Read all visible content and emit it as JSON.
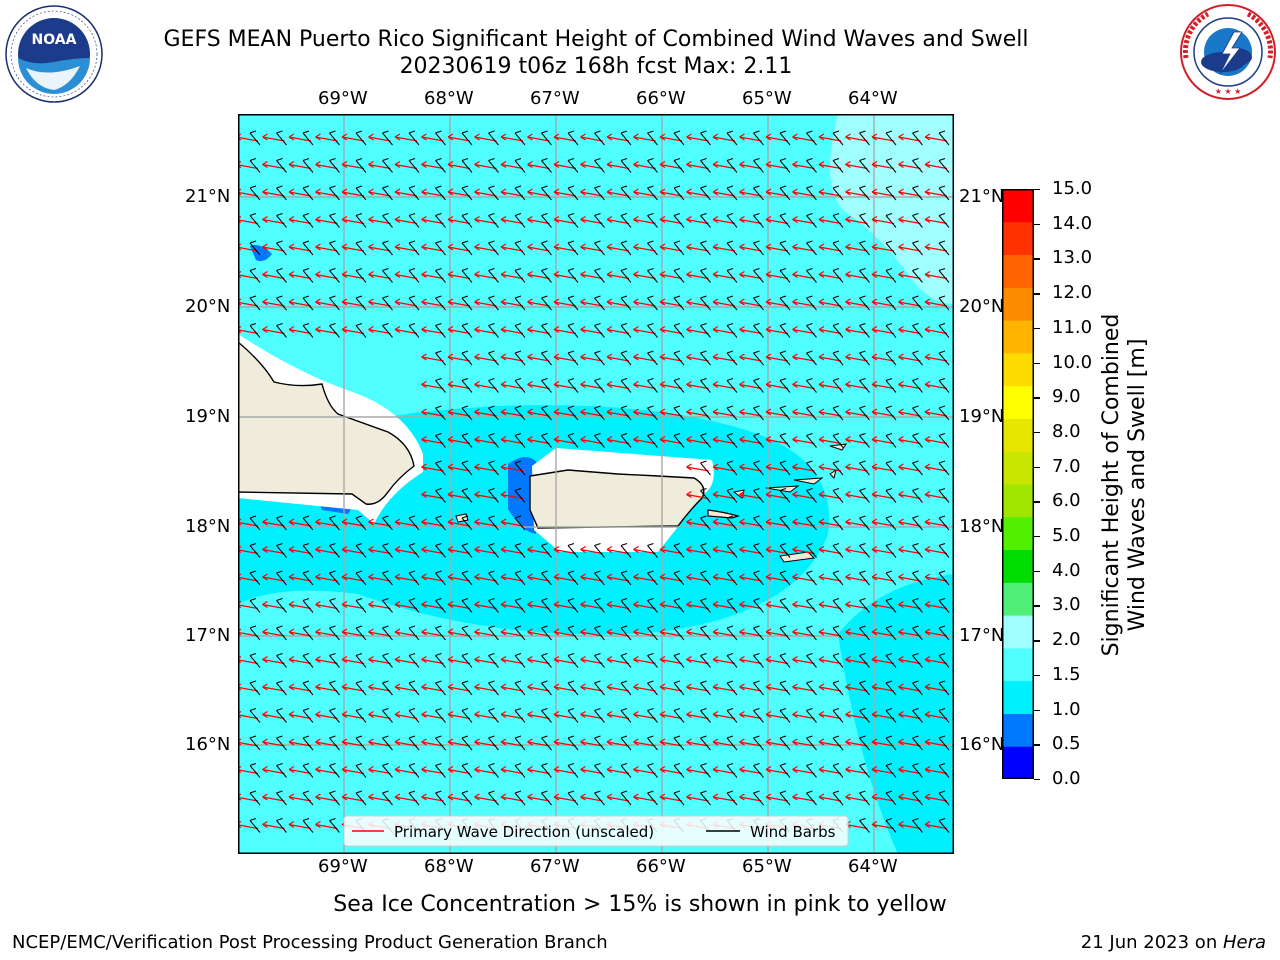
{
  "header": {
    "title_line1": "GEFS MEAN Puerto Rico Significant Height of Combined Wind Waves and Swell",
    "title_line2": "20230619 t06z 168h fcst   Max: 2.11"
  },
  "logos": {
    "left": {
      "icon": "noaa-logo-icon",
      "text": "NOAA",
      "ring_text": "NATIONAL OCEANIC AND ATMOSPHERIC ADMINISTRATION · U.S. DEPARTMENT OF COMMERCE"
    },
    "right": {
      "icon": "nws-logo-icon",
      "ring_text": "NATIONAL WEATHER SERVICE"
    }
  },
  "map": {
    "lon_labels": [
      "69°W",
      "68°W",
      "67°W",
      "66°W",
      "65°W",
      "64°W"
    ],
    "lat_labels": [
      "21°N",
      "20°N",
      "19°N",
      "18°N",
      "17°N",
      "16°N"
    ],
    "legend": {
      "wave_direction": "Primary Wave Direction (unscaled)",
      "wind_barbs": "Wind Barbs",
      "wave_color": "#ff0000",
      "barb_color": "#000000"
    },
    "field_colors": {
      "light": "#50ffff",
      "mid": "#00f0ff",
      "pale": "#a0ffff",
      "land": "#efecdc"
    }
  },
  "colorbar": {
    "title_line1": "Significant Height of Combined",
    "title_line2": "Wind Waves and Swell [m]",
    "labels": [
      "15.0",
      "14.0",
      "13.0",
      "12.0",
      "11.0",
      "10.0",
      "9.0",
      "8.0",
      "7.0",
      "6.0",
      "5.0",
      "4.0",
      "3.0",
      "2.0",
      "1.5",
      "1.0",
      "0.5",
      "0.0"
    ],
    "colors": [
      "#0000ff",
      "#0078ff",
      "#00f0ff",
      "#50ffff",
      "#a0ffff",
      "#50f078",
      "#00dc00",
      "#50f000",
      "#a0e600",
      "#c8e600",
      "#e6e600",
      "#ffff00",
      "#ffdc00",
      "#ffb400",
      "#ff8c00",
      "#ff6400",
      "#ff3200",
      "#ff0000"
    ]
  },
  "footer": {
    "note": "Sea Ice Concentration > 15% is shown in pink to yellow",
    "credit_left": "NCEP/EMC/Verification Post Processing Product Generation Branch",
    "credit_date": "21 Jun 2023 on ",
    "credit_machine": "Hera"
  }
}
